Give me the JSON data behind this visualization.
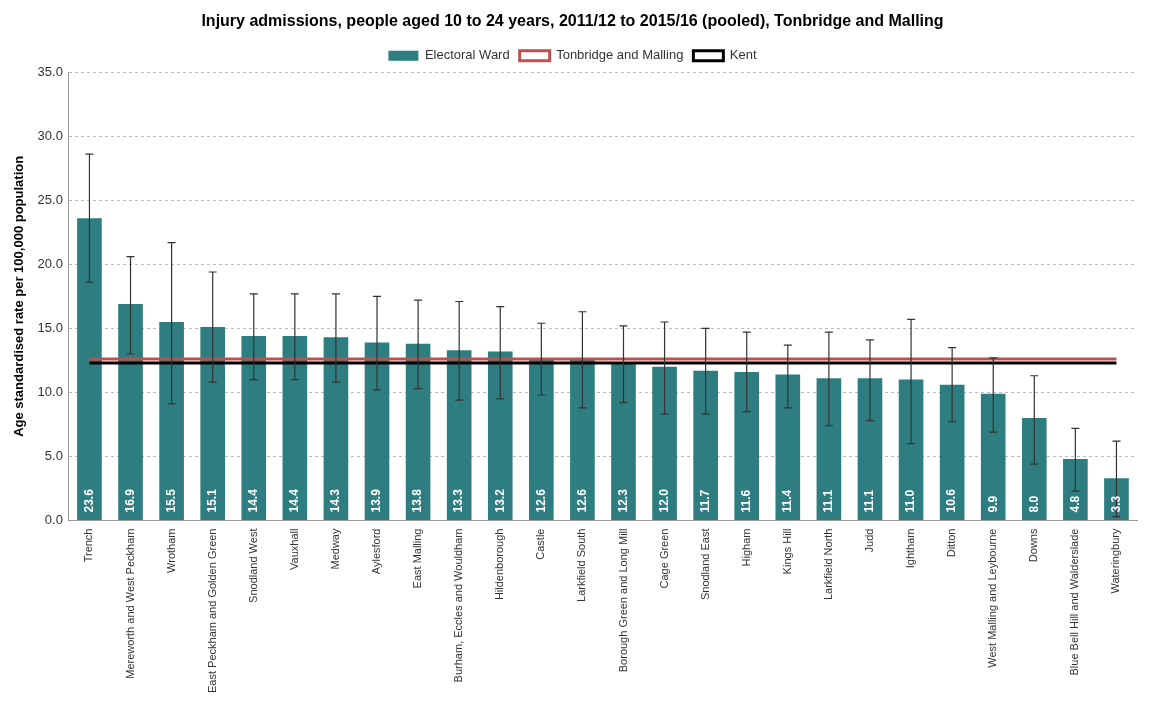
{
  "chart_data": {
    "type": "bar",
    "title": "Injury admissions, people aged 10 to 24 years, 2011/12 to 2015/16 (pooled), Tonbridge and Malling",
    "ylabel": "Age standardised rate per 100,000 population",
    "categories": [
      "Trench",
      "Mereworth and West Peckham",
      "Wrotham",
      "East Peckham and Golden Green",
      "Snodland West",
      "Vauxhall",
      "Medway",
      "Aylesford",
      "East Malling",
      "Burham, Eccles and Wouldham",
      "Hildenborough",
      "Castle",
      "Larkfield South",
      "Borough Green and Long Mill",
      "Cage Green",
      "Snodland East",
      "Higham",
      "Kings Hill",
      "Larkfield North",
      "Judd",
      "Ightham",
      "Ditton",
      "West Malling and Leybourne",
      "Downs",
      "Blue Bell Hill and Walderslade",
      "Wateringbury"
    ],
    "series": [
      {
        "name": "Electoral Ward",
        "color": "#2e7d80",
        "values": [
          23.6,
          16.9,
          15.5,
          15.1,
          14.4,
          14.4,
          14.3,
          13.9,
          13.8,
          13.3,
          13.2,
          12.6,
          12.6,
          12.3,
          12.0,
          11.7,
          11.6,
          11.4,
          11.1,
          11.1,
          11.0,
          10.6,
          9.9,
          8.0,
          4.8,
          3.3
        ],
        "value_labels": [
          "23.6",
          "16.9",
          "15.5",
          "15.1",
          "14.4",
          "14.4",
          "14.3",
          "13.9",
          "13.8",
          "13.3",
          "13.2",
          "12.6",
          "12.6",
          "12.3",
          "12.0",
          "11.7",
          "11.6",
          "11.4",
          "11.1",
          "11.1",
          "11.0",
          "10.6",
          "9.9",
          "8.0",
          "4.8",
          "3.3"
        ],
        "errors": [
          [
            18.6,
            28.6
          ],
          [
            13.0,
            20.6
          ],
          [
            9.1,
            21.7
          ],
          [
            10.8,
            19.4
          ],
          [
            11.0,
            17.7
          ],
          [
            11.0,
            17.7
          ],
          [
            10.8,
            17.7
          ],
          [
            10.2,
            17.5
          ],
          [
            10.3,
            17.2
          ],
          [
            9.4,
            17.1
          ],
          [
            9.5,
            16.7
          ],
          [
            9.8,
            15.4
          ],
          [
            8.8,
            16.3
          ],
          [
            9.2,
            15.2
          ],
          [
            8.3,
            15.5
          ],
          [
            8.3,
            15.0
          ],
          [
            8.5,
            14.7
          ],
          [
            8.8,
            13.7
          ],
          [
            7.4,
            14.7
          ],
          [
            7.8,
            14.1
          ],
          [
            6.0,
            15.7
          ],
          [
            7.7,
            13.5
          ],
          [
            6.9,
            12.7
          ],
          [
            4.4,
            11.3
          ],
          [
            2.3,
            7.2
          ],
          [
            0.3,
            6.2
          ]
        ]
      },
      {
        "name": "Tonbridge and Malling",
        "type": "line",
        "color": "#c0504d",
        "values": [
          12.6,
          12.6,
          12.6,
          12.6,
          12.6,
          12.6,
          12.6,
          12.6,
          12.6,
          12.6,
          12.6,
          12.6,
          12.6,
          12.6,
          12.6,
          12.6,
          12.6,
          12.6,
          12.6,
          12.6,
          12.6,
          12.6,
          12.6,
          12.6,
          12.6,
          12.6
        ]
      },
      {
        "name": "Kent",
        "type": "line",
        "color": "#000000",
        "values": [
          12.3,
          12.3,
          12.3,
          12.3,
          12.3,
          12.3,
          12.3,
          12.3,
          12.3,
          12.3,
          12.3,
          12.3,
          12.3,
          12.3,
          12.3,
          12.3,
          12.3,
          12.3,
          12.3,
          12.3,
          12.3,
          12.3,
          12.3,
          12.3,
          12.3,
          12.3
        ]
      }
    ],
    "ylim": [
      0,
      35
    ],
    "yticks": [
      {
        "value": 0,
        "label": "0.0"
      },
      {
        "value": 5,
        "label": "5.0"
      },
      {
        "value": 10,
        "label": "10.0"
      },
      {
        "value": 15,
        "label": "15.0"
      },
      {
        "value": 20,
        "label": "20.0"
      },
      {
        "value": 25,
        "label": "25.0"
      },
      {
        "value": 30,
        "label": "30.0"
      },
      {
        "value": 35,
        "label": "35.0"
      }
    ],
    "grid": "y",
    "legend": "top",
    "marker": "none",
    "line_style": "solid"
  }
}
